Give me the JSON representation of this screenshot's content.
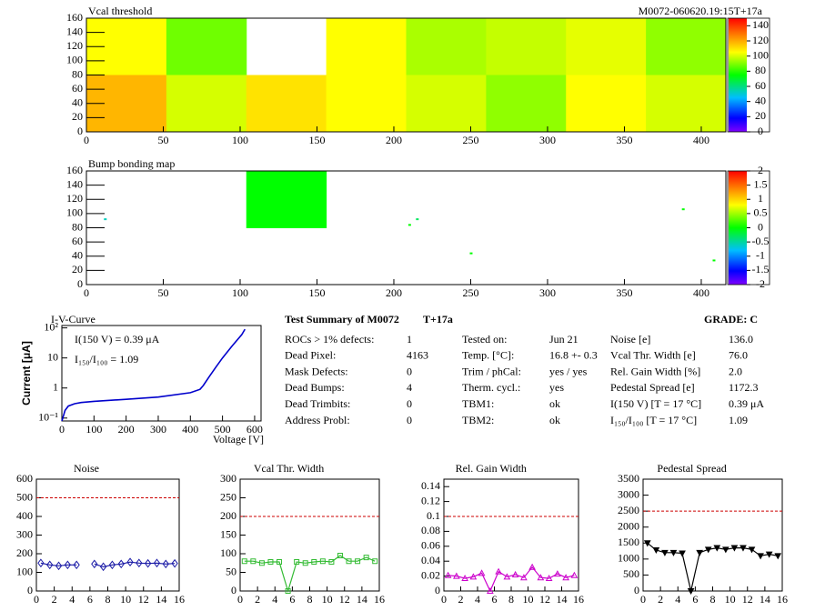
{
  "chart_data": [
    {
      "type": "heatmap",
      "title": "Vcal threshold",
      "subtitle": "M0072-060620.19:15T+17a",
      "xlim": [
        0,
        416
      ],
      "ylim": [
        0,
        160
      ],
      "xticks": [
        0,
        50,
        100,
        150,
        200,
        250,
        300,
        350,
        400
      ],
      "yticks": [
        0,
        20,
        40,
        60,
        80,
        100,
        120,
        140,
        160
      ],
      "zlim": [
        0,
        150
      ],
      "zticks": [
        0,
        20,
        40,
        60,
        80,
        100,
        120,
        140
      ],
      "values": [
        [
          105,
          88,
          null,
          105,
          95,
          98,
          102,
          92
        ],
        [
          118,
          100,
          110,
          105,
          100,
          92,
          105,
          100
        ]
      ]
    },
    {
      "type": "heatmap",
      "title": "Bump bonding map",
      "xlim": [
        0,
        416
      ],
      "ylim": [
        0,
        160
      ],
      "xticks": [
        0,
        50,
        100,
        150,
        200,
        250,
        300,
        350,
        400
      ],
      "yticks": [
        0,
        20,
        40,
        60,
        80,
        100,
        120,
        140,
        160
      ],
      "zlim": [
        -2,
        2
      ],
      "zticks": [
        -2,
        -1.5,
        -1,
        -0.5,
        0,
        0.5,
        1,
        1.5,
        2
      ],
      "values": [
        [
          null,
          null,
          0,
          null,
          null,
          null,
          null,
          null
        ],
        [
          null,
          null,
          null,
          null,
          null,
          null,
          null,
          null
        ]
      ],
      "points": {
        "x": [
          12,
          210,
          215,
          250,
          388,
          408
        ],
        "y": [
          92,
          84,
          92,
          44,
          106,
          34
        ],
        "values": [
          -0.6,
          0,
          -0.3,
          0,
          0,
          0
        ]
      }
    },
    {
      "type": "line",
      "title": "I-V-Curve",
      "xlabel": "Voltage [V]",
      "ylabel": "Current [μA]",
      "log_y": true,
      "annotations": [
        "I(150 V) = 0.39 μA",
        "I₁₅₀/I₁₀₀ =  1.09"
      ],
      "xlim": [
        0,
        620
      ],
      "ylim": [
        0.08,
        120
      ],
      "xticks": [
        0,
        100,
        200,
        300,
        400,
        500,
        600
      ],
      "yticks": [
        {
          "value": 0.1,
          "label": "10⁻¹"
        },
        1,
        10,
        {
          "value": 100,
          "label": "10²"
        }
      ],
      "x": [
        0,
        5,
        10,
        20,
        40,
        60,
        100,
        200,
        300,
        400,
        430,
        440,
        460,
        480,
        500,
        530,
        560,
        570
      ],
      "series": [
        {
          "color": "#0000cc",
          "values": [
            0.08,
            0.12,
            0.18,
            0.25,
            0.3,
            0.33,
            0.36,
            0.42,
            0.5,
            0.7,
            0.9,
            1.2,
            2.5,
            5,
            10,
            25,
            60,
            90
          ]
        }
      ]
    },
    {
      "type": "line",
      "title": "Noise",
      "xlim": [
        0,
        16
      ],
      "ylim": [
        0,
        600
      ],
      "xticks": [
        0,
        2,
        4,
        6,
        8,
        10,
        12,
        14,
        16
      ],
      "yticks": [
        0,
        100,
        200,
        300,
        400,
        500,
        600
      ],
      "threshold": 500,
      "marker": "diamond",
      "x": [
        0.5,
        1.5,
        2.5,
        3.5,
        4.5,
        5.5,
        6.5,
        7.5,
        8.5,
        9.5,
        10.5,
        11.5,
        12.5,
        13.5,
        14.5,
        15.5
      ],
      "series": [
        {
          "color": "#1a1aa6",
          "values": [
            150,
            140,
            135,
            140,
            140,
            null,
            145,
            130,
            140,
            145,
            155,
            150,
            148,
            150,
            145,
            148
          ]
        }
      ]
    },
    {
      "type": "line",
      "title": "Vcal Thr. Width",
      "xlim": [
        0,
        16
      ],
      "ylim": [
        0,
        300
      ],
      "xticks": [
        0,
        2,
        4,
        6,
        8,
        10,
        12,
        14,
        16
      ],
      "yticks": [
        0,
        50,
        100,
        150,
        200,
        250,
        300
      ],
      "threshold": 200,
      "marker": "square",
      "x": [
        0.5,
        1.5,
        2.5,
        3.5,
        4.5,
        5.5,
        6.5,
        7.5,
        8.5,
        9.5,
        10.5,
        11.5,
        12.5,
        13.5,
        14.5,
        15.5
      ],
      "series": [
        {
          "color": "#33bb33",
          "values": [
            80,
            80,
            75,
            78,
            78,
            0,
            78,
            75,
            78,
            80,
            78,
            95,
            80,
            80,
            90,
            80
          ]
        }
      ]
    },
    {
      "type": "line",
      "title": "Rel. Gain Width",
      "xlim": [
        0,
        16
      ],
      "ylim": [
        0,
        0.15
      ],
      "xticks": [
        0,
        2,
        4,
        6,
        8,
        10,
        12,
        14,
        16
      ],
      "yticks": [
        0,
        0.02,
        0.04,
        0.06,
        0.08,
        0.1,
        0.12,
        0.14
      ],
      "threshold": 0.1,
      "marker": "triangle",
      "x": [
        0.5,
        1.5,
        2.5,
        3.5,
        4.5,
        5.5,
        6.5,
        7.5,
        8.5,
        9.5,
        10.5,
        11.5,
        12.5,
        13.5,
        14.5,
        15.5
      ],
      "series": [
        {
          "color": "#cc00cc",
          "values": [
            0.021,
            0.02,
            0.017,
            0.019,
            0.024,
            0,
            0.026,
            0.019,
            0.022,
            0.018,
            0.032,
            0.018,
            0.017,
            0.023,
            0.018,
            0.021
          ]
        }
      ]
    },
    {
      "type": "line",
      "title": "Pedestal Spread",
      "xlim": [
        0,
        16
      ],
      "ylim": [
        0,
        3500
      ],
      "xticks": [
        0,
        2,
        4,
        6,
        8,
        10,
        12,
        14,
        16
      ],
      "yticks": [
        0,
        500,
        1000,
        1500,
        2000,
        2500,
        3000,
        3500
      ],
      "threshold": 2500,
      "marker": "triangle-down",
      "x": [
        0.5,
        1.5,
        2.5,
        3.5,
        4.5,
        5.5,
        6.5,
        7.5,
        8.5,
        9.5,
        10.5,
        11.5,
        12.5,
        13.5,
        14.5,
        15.5
      ],
      "series": [
        {
          "color": "#000000",
          "values": [
            1500,
            1280,
            1200,
            1200,
            1180,
            0,
            1200,
            1300,
            1350,
            1300,
            1350,
            1350,
            1300,
            1100,
            1150,
            1100
          ]
        }
      ]
    }
  ],
  "summary": {
    "title": "Test Summary of M0072",
    "tag": "T+17a",
    "grade": "GRADE:  C",
    "columns": [
      [
        [
          "ROCs > 1% defects:",
          "1"
        ],
        [
          "Dead Pixel:",
          "4163"
        ],
        [
          "Mask Defects:",
          "0"
        ],
        [
          "Dead Bumps:",
          "4"
        ],
        [
          "Dead Trimbits:",
          "0"
        ],
        [
          "Address Probl:",
          "0"
        ]
      ],
      [
        [
          "Tested on:",
          "Jun 21"
        ],
        [
          "Temp. [°C]:",
          "16.8 +- 0.3"
        ],
        [
          "Trim / phCal:",
          "yes / yes"
        ],
        [
          "Therm. cycl.:",
          "yes"
        ],
        [
          "TBM1:",
          "ok"
        ],
        [
          "TBM2:",
          "ok"
        ]
      ],
      [
        [
          "Noise [e]",
          "136.0"
        ],
        [
          "Vcal Thr. Width [e]",
          "76.0"
        ],
        [
          "Rel. Gain Width [%]",
          "2.0"
        ],
        [
          "Pedestal Spread [e]",
          "1172.3"
        ],
        [
          "I(150 V) [T = 17 °C]",
          "0.39 μA"
        ],
        [
          "I₁₅₀/I₁₀₀  [T = 17 °C]",
          "1.09"
        ]
      ]
    ]
  }
}
